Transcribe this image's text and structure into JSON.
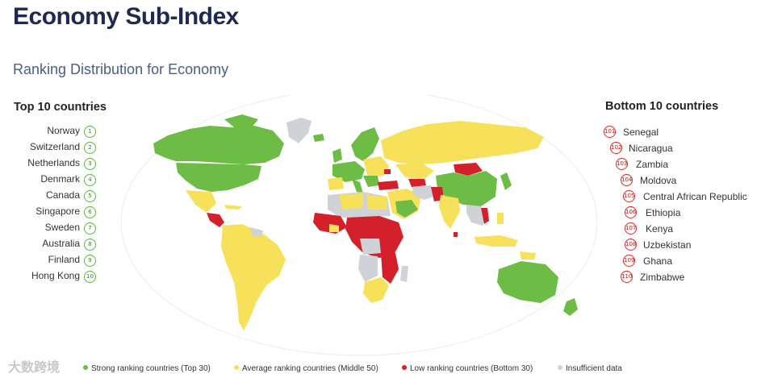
{
  "header": {
    "title": "Economy Sub-Index",
    "subtitle": "Ranking Distribution for Economy"
  },
  "top10": {
    "title": "Top 10 countries",
    "items": [
      {
        "name": "Norway",
        "rank": "1"
      },
      {
        "name": "Switzerland",
        "rank": "2"
      },
      {
        "name": "Netherlands",
        "rank": "3"
      },
      {
        "name": "Denmark",
        "rank": "4"
      },
      {
        "name": "Canada",
        "rank": "5"
      },
      {
        "name": "Singapore",
        "rank": "6"
      },
      {
        "name": "Sweden",
        "rank": "7"
      },
      {
        "name": "Australia",
        "rank": "8"
      },
      {
        "name": "Finland",
        "rank": "9"
      },
      {
        "name": "Hong Kong",
        "rank": "10"
      }
    ]
  },
  "bottom10": {
    "title": "Bottom 10 countries",
    "items": [
      {
        "name": "Senegal",
        "rank": "101"
      },
      {
        "name": "Nicaragua",
        "rank": "102"
      },
      {
        "name": "Zambia",
        "rank": "103"
      },
      {
        "name": "Moldova",
        "rank": "104"
      },
      {
        "name": "Central African Republic",
        "rank": "105"
      },
      {
        "name": "Ethiopia",
        "rank": "106"
      },
      {
        "name": "Kenya",
        "rank": "107"
      },
      {
        "name": "Uzbekistan",
        "rank": "108"
      },
      {
        "name": "Ghana",
        "rank": "109"
      },
      {
        "name": "Zimbabwe",
        "rank": "110"
      }
    ]
  },
  "legend": {
    "items": [
      {
        "label": "Strong ranking countries (Top 30)",
        "color": "#6cbc45"
      },
      {
        "label": "Average ranking countries (Middle 50)",
        "color": "#f7e15a"
      },
      {
        "label": "Low ranking countries (Bottom 30)",
        "color": "#d4202a"
      },
      {
        "label": "Insufficient data",
        "color": "#cfd2d6"
      }
    ]
  },
  "colors": {
    "strong": "#6cbc45",
    "average": "#f7e15a",
    "low": "#d4202a",
    "none": "#cfd2d6",
    "title": "#1f2a52",
    "subtitle": "#4a5e86"
  },
  "watermark": "大数跨境"
}
